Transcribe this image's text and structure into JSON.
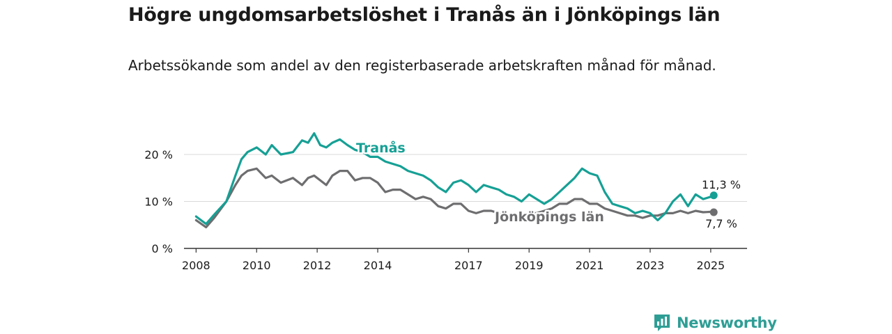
{
  "title": "Högre ungdomsarbetslöshet i Tranås än i Jönköpings län",
  "subtitle": "Arbetssökande som andel av den registerbaserade arbetskraften månad för månad.",
  "brand": {
    "name": "Newsworthy",
    "color": "#2e9e95"
  },
  "chart_data": {
    "type": "line",
    "title": "Högre ungdomsarbetslöshet i Tranås än i Jönköpings län",
    "xlabel": "",
    "ylabel": "",
    "xlim": [
      2007.6,
      2026.2
    ],
    "ylim": [
      0,
      20
    ],
    "y_ticks": [
      0,
      10,
      20
    ],
    "y_tick_labels": [
      "0 %",
      "10 %",
      "20 %"
    ],
    "x_ticks": [
      2008,
      2010,
      2012,
      2014,
      2017,
      2019,
      2021,
      2023,
      2025
    ],
    "x_tick_labels": [
      "2008",
      "2010",
      "2012",
      "2014",
      "2017",
      "2019",
      "2021",
      "2023",
      "2025"
    ],
    "grid": true,
    "series": [
      {
        "name": "Tranås",
        "color": "#16a095",
        "end_label": "11,3 %",
        "x": [
          2008.0,
          2008.33,
          2008.6,
          2009.0,
          2009.3,
          2009.5,
          2009.7,
          2010.0,
          2010.3,
          2010.5,
          2010.8,
          2011.2,
          2011.5,
          2011.7,
          2011.9,
          2012.1,
          2012.3,
          2012.5,
          2012.75,
          2013.0,
          2013.25,
          2013.5,
          2013.75,
          2014.0,
          2014.25,
          2014.5,
          2014.75,
          2015.0,
          2015.25,
          2015.5,
          2015.75,
          2016.0,
          2016.25,
          2016.5,
          2016.75,
          2017.0,
          2017.25,
          2017.5,
          2017.75,
          2018.0,
          2018.25,
          2018.5,
          2018.75,
          2019.0,
          2019.25,
          2019.5,
          2019.75,
          2020.0,
          2020.25,
          2020.5,
          2020.75,
          2021.0,
          2021.25,
          2021.5,
          2021.75,
          2022.0,
          2022.25,
          2022.5,
          2022.75,
          2023.0,
          2023.25,
          2023.5,
          2023.75,
          2024.0,
          2024.25,
          2024.5,
          2024.75,
          2025.0,
          2025.1
        ],
        "values": [
          6.8,
          5.2,
          7.2,
          10.0,
          15.5,
          19.0,
          20.5,
          21.5,
          20.0,
          22.0,
          20.0,
          20.5,
          23.0,
          22.5,
          24.5,
          22.0,
          21.5,
          22.5,
          23.2,
          22.0,
          21.0,
          20.5,
          19.5,
          19.5,
          18.5,
          18.0,
          17.5,
          16.5,
          16.0,
          15.5,
          14.5,
          13.0,
          12.0,
          14.0,
          14.5,
          13.5,
          12.0,
          13.5,
          13.0,
          12.5,
          11.5,
          11.0,
          10.0,
          11.5,
          10.5,
          9.5,
          10.5,
          12.0,
          13.5,
          15.0,
          17.0,
          16.0,
          15.5,
          12.0,
          9.5,
          9.0,
          8.5,
          7.5,
          8.0,
          7.5,
          6.0,
          7.5,
          10.0,
          11.5,
          9.0,
          11.5,
          10.5,
          11.0,
          11.3
        ]
      },
      {
        "name": "Jönköpings län",
        "color": "#6e6e70",
        "end_label": "7,7 %",
        "x": [
          2008.0,
          2008.33,
          2008.6,
          2009.0,
          2009.3,
          2009.5,
          2009.7,
          2010.0,
          2010.3,
          2010.5,
          2010.8,
          2011.2,
          2011.5,
          2011.7,
          2011.9,
          2012.1,
          2012.3,
          2012.5,
          2012.75,
          2013.0,
          2013.25,
          2013.5,
          2013.75,
          2014.0,
          2014.25,
          2014.5,
          2014.75,
          2015.0,
          2015.25,
          2015.5,
          2015.75,
          2016.0,
          2016.25,
          2016.5,
          2016.75,
          2017.0,
          2017.25,
          2017.5,
          2017.75,
          2018.0,
          2018.25,
          2018.5,
          2018.75,
          2019.0,
          2019.25,
          2019.5,
          2019.75,
          2020.0,
          2020.25,
          2020.5,
          2020.75,
          2021.0,
          2021.25,
          2021.5,
          2021.75,
          2022.0,
          2022.25,
          2022.5,
          2022.75,
          2023.0,
          2023.25,
          2023.5,
          2023.75,
          2024.0,
          2024.25,
          2024.5,
          2024.75,
          2025.0,
          2025.1
        ],
        "values": [
          6.0,
          4.5,
          6.5,
          10.0,
          13.5,
          15.5,
          16.5,
          17.0,
          15.0,
          15.5,
          14.0,
          15.0,
          13.5,
          15.0,
          15.5,
          14.5,
          13.5,
          15.5,
          16.5,
          16.5,
          14.5,
          15.0,
          15.0,
          14.0,
          12.0,
          12.5,
          12.5,
          11.5,
          10.5,
          11.0,
          10.5,
          9.0,
          8.5,
          9.5,
          9.5,
          8.0,
          7.5,
          8.0,
          8.0,
          7.5,
          6.5,
          7.0,
          6.5,
          7.5,
          7.5,
          8.0,
          8.5,
          9.5,
          9.5,
          10.5,
          10.5,
          9.5,
          9.5,
          8.5,
          8.0,
          7.5,
          7.0,
          7.0,
          6.5,
          7.0,
          7.0,
          7.5,
          7.5,
          8.0,
          7.5,
          8.0,
          7.7,
          7.8,
          7.7
        ]
      }
    ]
  }
}
